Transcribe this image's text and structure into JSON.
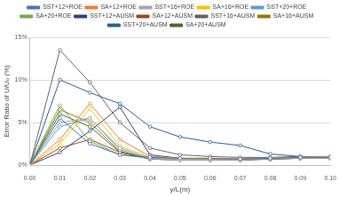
{
  "chart_data": {
    "type": "line",
    "x_label": "y/L(m)",
    "y_label": "Error Ratio of U/U₀ (%)",
    "x": [
      0,
      0.01,
      0.02,
      0.03,
      0.04,
      0.05,
      0.06,
      0.07,
      0.08,
      0.09,
      0.1
    ],
    "series": [
      {
        "name": "SST+12+ROE",
        "color": "#4472c4",
        "values": [
          0,
          5.5,
          2.5,
          1.2,
          0.9,
          0.8,
          0.8,
          0.7,
          0.8,
          0.9,
          0.9
        ]
      },
      {
        "name": "SA+12+ROE",
        "color": "#ed7d31",
        "values": [
          0,
          3,
          7.2,
          3,
          1,
          0.8,
          0.7,
          0.7,
          0.8,
          0.9,
          1
        ]
      },
      {
        "name": "SST+16+ROE",
        "color": "#a5a5a5",
        "values": [
          0,
          5,
          5.5,
          2,
          0.8,
          0.6,
          0.6,
          0.6,
          0.8,
          0.8,
          0.8
        ]
      },
      {
        "name": "SA+16+ROE",
        "color": "#ffc000",
        "values": [
          0,
          2.5,
          6.6,
          2.2,
          0.9,
          0.7,
          0.7,
          0.7,
          0.8,
          0.9,
          0.9
        ]
      },
      {
        "name": "SST+20+ROE",
        "color": "#5b9bd5",
        "values": [
          0,
          4.5,
          5.5,
          1.8,
          0.7,
          0.6,
          0.6,
          0.6,
          0.7,
          0.8,
          0.8
        ]
      },
      {
        "name": "SA+20+ROE",
        "color": "#70ad47",
        "values": [
          0,
          7,
          2.8,
          1.2,
          0.8,
          0.7,
          0.7,
          0.7,
          0.8,
          0.9,
          1
        ]
      },
      {
        "name": "SST+12+AUSM",
        "color": "#264478",
        "values": [
          0,
          1.5,
          4,
          6.8,
          1.2,
          0.8,
          0.7,
          0.7,
          0.8,
          0.9,
          0.9
        ]
      },
      {
        "name": "SA+12+AUSM",
        "color": "#9e480e",
        "values": [
          0,
          2,
          3,
          1.5,
          0.8,
          0.7,
          0.6,
          0.6,
          0.7,
          0.8,
          0.8
        ]
      },
      {
        "name": "SST+16+AUSM",
        "color": "#636363",
        "values": [
          0,
          13.5,
          9.7,
          5,
          2,
          1.2,
          1,
          0.9,
          0.9,
          1,
          1
        ]
      },
      {
        "name": "SA+16+AUSM",
        "color": "#997300",
        "values": [
          0,
          6.5,
          5,
          1.6,
          0.7,
          0.6,
          0.6,
          0.6,
          0.7,
          0.8,
          0.9
        ]
      },
      {
        "name": "SST+20+AUSM",
        "color": "#255e91",
        "values": [
          0,
          10,
          8.5,
          7.2,
          4.5,
          3.3,
          2.7,
          2.3,
          1.3,
          1,
          0.9
        ]
      },
      {
        "name": "SA+20+AUSM",
        "color": "#43682b",
        "values": [
          0,
          6,
          4.5,
          1.5,
          0.7,
          0.6,
          0.6,
          0.6,
          0.7,
          0.8,
          0.8
        ]
      }
    ],
    "xlim": [
      0,
      0.1
    ],
    "xticks": [
      {
        "value": 0,
        "label": "0.00"
      },
      {
        "value": 0.01,
        "label": "0.01"
      },
      {
        "value": 0.02,
        "label": "0.02"
      },
      {
        "value": 0.03,
        "label": "0.03"
      },
      {
        "value": 0.04,
        "label": "0.04"
      },
      {
        "value": 0.05,
        "label": "0.05"
      },
      {
        "value": 0.06,
        "label": "0.06"
      },
      {
        "value": 0.07,
        "label": "0.07"
      },
      {
        "value": 0.08,
        "label": "0.08"
      },
      {
        "value": 0.09,
        "label": "0.09"
      },
      {
        "value": 0.1,
        "label": "0.10"
      }
    ],
    "ylim": [
      0,
      15
    ],
    "yticks": [
      {
        "value": 0,
        "label": "0%"
      },
      {
        "value": 5,
        "label": "5%"
      },
      {
        "value": 10,
        "label": "10%"
      },
      {
        "value": 15,
        "label": "15%"
      }
    ],
    "grid": true,
    "legend": "top",
    "marker": "circle"
  }
}
